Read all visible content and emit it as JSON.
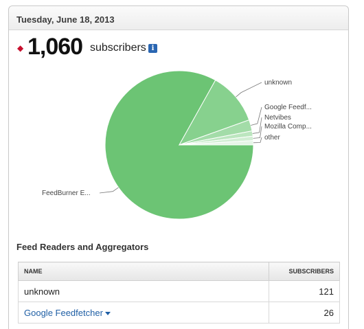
{
  "header": {
    "date": "Tuesday, June 18, 2013"
  },
  "summary": {
    "count": "1,060",
    "label": "subscribers",
    "info_icon": "i"
  },
  "colors": {
    "pie_main": "#6cc474",
    "bullet": "#c8102e",
    "link": "#1f5fa5"
  },
  "chart_data": {
    "type": "pie",
    "slices": [
      {
        "label": "FeedBurner E...",
        "value": 881,
        "color": "#6cc474"
      },
      {
        "label": "unknown",
        "value": 121,
        "color": "#87d18e"
      },
      {
        "label": "Google Feedf...",
        "value": 26,
        "color": "#a3dca8"
      },
      {
        "label": "Netvibes",
        "value": 12,
        "color": "#bce6bf"
      },
      {
        "label": "Mozilla Comp...",
        "value": 10,
        "color": "#d2eed4"
      },
      {
        "label": "other",
        "value": 10,
        "color": "#e6f5e7"
      }
    ]
  },
  "table": {
    "title": "Feed Readers and Aggregators",
    "headers": {
      "name": "NAME",
      "subscribers": "SUBSCRIBERS"
    },
    "rows": [
      {
        "name": "unknown",
        "subscribers": "121"
      },
      {
        "name": "Google Feedfetcher",
        "subscribers": "26"
      }
    ]
  }
}
